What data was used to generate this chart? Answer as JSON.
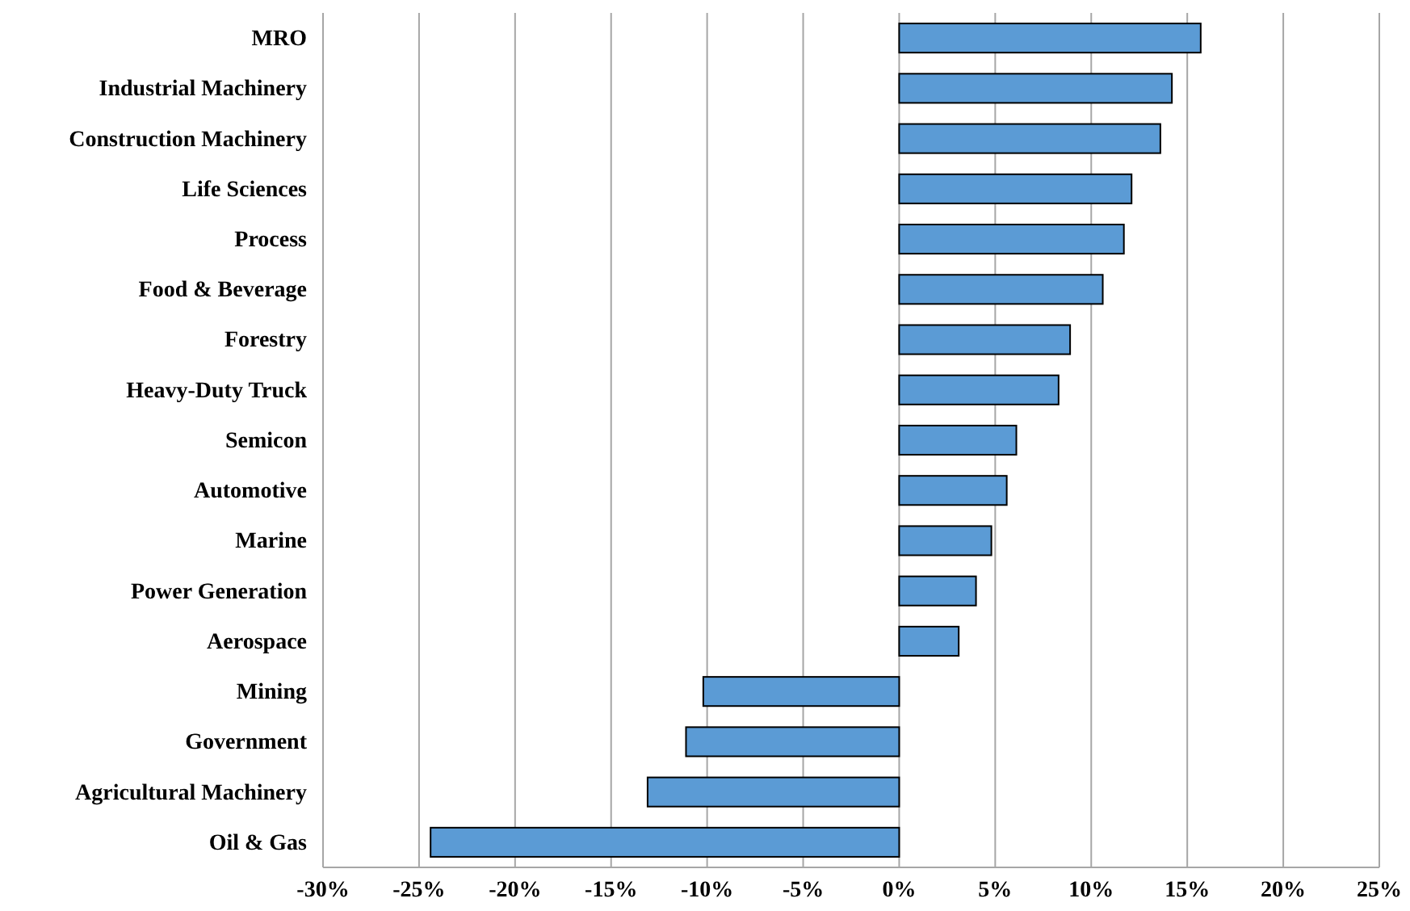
{
  "chart_data": {
    "type": "bar",
    "orientation": "horizontal",
    "categories": [
      "MRO",
      "Industrial Machinery",
      "Construction Machinery",
      "Life Sciences",
      "Process",
      "Food & Beverage",
      "Forestry",
      "Heavy-Duty Truck",
      "Semicon",
      "Automotive",
      "Marine",
      "Power Generation",
      "Aerospace",
      "Mining",
      "Government",
      "Agricultural Machinery",
      "Oil & Gas"
    ],
    "values": [
      15.7,
      14.2,
      13.6,
      12.1,
      11.7,
      10.6,
      8.9,
      8.3,
      6.1,
      5.6,
      4.8,
      4.0,
      3.1,
      -10.2,
      -11.1,
      -13.1,
      -24.4
    ],
    "color": "#5b9bd5",
    "xlim": [
      -30,
      25
    ],
    "xticks": [
      {
        "value": -30,
        "label": "-30%"
      },
      {
        "value": -25,
        "label": "-25%"
      },
      {
        "value": -20,
        "label": "-20%"
      },
      {
        "value": -15,
        "label": "-15%"
      },
      {
        "value": -10,
        "label": "-10%"
      },
      {
        "value": -5,
        "label": "-5%"
      },
      {
        "value": 0,
        "label": "0%"
      },
      {
        "value": 5,
        "label": "5%"
      },
      {
        "value": 10,
        "label": "10%"
      },
      {
        "value": 15,
        "label": "15%"
      },
      {
        "value": 20,
        "label": "20%"
      },
      {
        "value": 25,
        "label": "25%"
      }
    ],
    "grid": "x"
  }
}
